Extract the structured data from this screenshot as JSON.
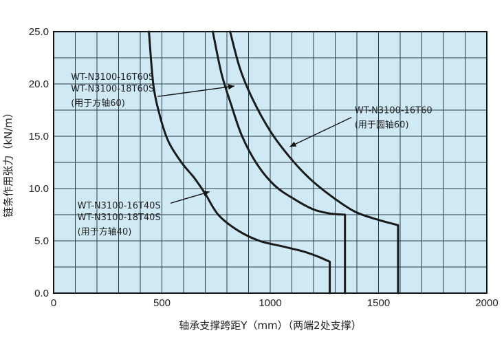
{
  "chart_data": {
    "type": "line",
    "title": "",
    "xlabel": "轴承支撑跨距Y（mm）（两端2处支撑）",
    "ylabel": "链条作用张力（kN/m）",
    "xlim": [
      0,
      2000
    ],
    "ylim": [
      0,
      25
    ],
    "x_ticks": [
      "0",
      "500",
      "1000",
      "1500",
      "2000"
    ],
    "y_ticks": [
      "0.0",
      "5.0",
      "10.0",
      "15.0",
      "20.0",
      "25.0"
    ],
    "x_minor_step": 100,
    "y_minor_step": 2.5,
    "grid": true,
    "plot_background": "#cfe9f5",
    "line_color": "#1a1a1a",
    "series": [
      {
        "id": "t40",
        "points": [
          [
            440,
            25
          ],
          [
            460,
            20
          ],
          [
            490,
            17
          ],
          [
            530,
            14.5
          ],
          [
            590,
            12.5
          ],
          [
            650,
            11
          ],
          [
            700,
            9.5
          ],
          [
            760,
            7.5
          ],
          [
            850,
            6
          ],
          [
            950,
            5
          ],
          [
            1050,
            4.5
          ],
          [
            1150,
            4
          ],
          [
            1220,
            3.5
          ],
          [
            1275,
            3
          ],
          [
            1275,
            0
          ]
        ]
      },
      {
        "id": "t60s",
        "points": [
          [
            735,
            25
          ],
          [
            775,
            21
          ],
          [
            820,
            18
          ],
          [
            870,
            15
          ],
          [
            940,
            12.3
          ],
          [
            1020,
            10.3
          ],
          [
            1110,
            9
          ],
          [
            1200,
            8
          ],
          [
            1280,
            7.6
          ],
          [
            1345,
            7.5
          ],
          [
            1345,
            0
          ]
        ]
      },
      {
        "id": "t60",
        "points": [
          [
            815,
            25
          ],
          [
            860,
            21.5
          ],
          [
            920,
            18.5
          ],
          [
            1000,
            15.5
          ],
          [
            1090,
            13
          ],
          [
            1180,
            11
          ],
          [
            1280,
            9.3
          ],
          [
            1390,
            7.8
          ],
          [
            1500,
            7
          ],
          [
            1590,
            6.5
          ],
          [
            1590,
            0
          ]
        ]
      }
    ],
    "annotations": [
      {
        "lines": [
          "WT-N3100-16T60S",
          "WT-N3100-18T60S",
          "(用于方轴60)"
        ],
        "text_at": [
          80,
          20.4
        ],
        "arrow_from": [
          480,
          18.8
        ],
        "arrow_to": [
          835,
          19.8
        ]
      },
      {
        "lines": [
          "WT-N3100-16T60",
          "(用于圆轴60)"
        ],
        "text_at": [
          1390,
          17.2
        ],
        "arrow_from": [
          1375,
          16.8
        ],
        "arrow_to": [
          1090,
          14.0
        ]
      },
      {
        "lines": [
          "WT-N3100-16T40S",
          "WT-N3100-18T40S",
          "(用于方轴40)"
        ],
        "text_at": [
          110,
          8.1
        ],
        "arrow_from": [
          540,
          8.6
        ],
        "arrow_to": [
          720,
          9.7
        ]
      }
    ]
  }
}
